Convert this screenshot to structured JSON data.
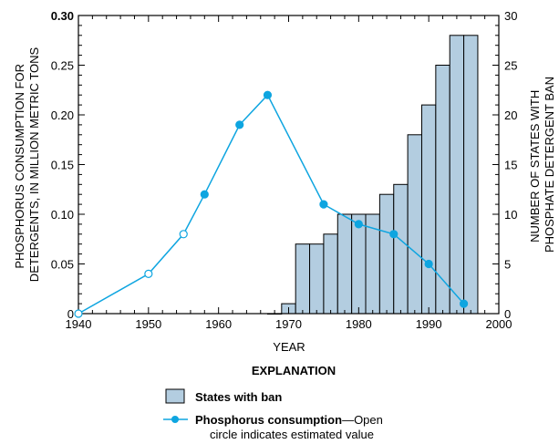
{
  "chart_data": {
    "type": "bar+line",
    "x_axis": {
      "label": "YEAR",
      "min": 1940,
      "max": 2000,
      "major_ticks": [
        1940,
        1950,
        1960,
        1970,
        1980,
        1990,
        2000
      ],
      "minor_step": 2
    },
    "y_left": {
      "label_lines": [
        "PHOSPHORUS CONSUMPTION FOR",
        "DETERGENTS, IN MILLION METRIC TONS"
      ],
      "min": 0,
      "max": 0.3,
      "ticks": [
        0,
        0.05,
        0.1,
        0.15,
        0.2,
        0.25,
        0.3
      ],
      "tick_labels": [
        "0",
        "0.05",
        "0.10",
        "0.15",
        "0.20",
        "0.25",
        "0.30"
      ]
    },
    "y_right": {
      "label_lines": [
        "NUMBER OF STATES WITH",
        "PHOSPHATE DETERGENT BAN"
      ],
      "min": 0,
      "max": 30,
      "ticks": [
        0,
        5,
        10,
        15,
        20,
        25,
        30
      ],
      "tick_labels": [
        "0",
        "5",
        "10",
        "15",
        "20",
        "25",
        "30"
      ]
    },
    "series": [
      {
        "name": "States with ban",
        "kind": "bar",
        "axis": "right",
        "color": "#b3cde0",
        "bar_years": [
          1967,
          1969,
          1971,
          1973,
          1975,
          1977,
          1979,
          1981,
          1983,
          1985,
          1987,
          1989,
          1991,
          1993,
          1995
        ],
        "values": [
          0,
          1,
          7,
          7,
          8,
          10,
          10,
          10,
          12,
          13,
          18,
          21,
          25,
          28,
          28
        ]
      },
      {
        "name": "Phosphorus consumption",
        "kind": "line",
        "axis": "left",
        "color": "#0ea5e0",
        "points": [
          {
            "x": 1940,
            "y": 0.0,
            "estimated": true
          },
          {
            "x": 1950,
            "y": 0.04,
            "estimated": true
          },
          {
            "x": 1955,
            "y": 0.08,
            "estimated": true
          },
          {
            "x": 1958,
            "y": 0.12,
            "estimated": false
          },
          {
            "x": 1963,
            "y": 0.19,
            "estimated": false
          },
          {
            "x": 1967,
            "y": 0.22,
            "estimated": false
          },
          {
            "x": 1975,
            "y": 0.11,
            "estimated": false
          },
          {
            "x": 1980,
            "y": 0.09,
            "estimated": false
          },
          {
            "x": 1985,
            "y": 0.08,
            "estimated": false
          },
          {
            "x": 1990,
            "y": 0.05,
            "estimated": false
          },
          {
            "x": 1995,
            "y": 0.01,
            "estimated": false
          }
        ]
      }
    ],
    "legend": {
      "title": "EXPLANATION",
      "placement": "bottom",
      "bar_label": "States with ban",
      "line_label_bold": "Phosphorus consumption",
      "line_label_rest": "—Open",
      "line_label_line2": "circle indicates estimated value"
    },
    "grid": false
  }
}
